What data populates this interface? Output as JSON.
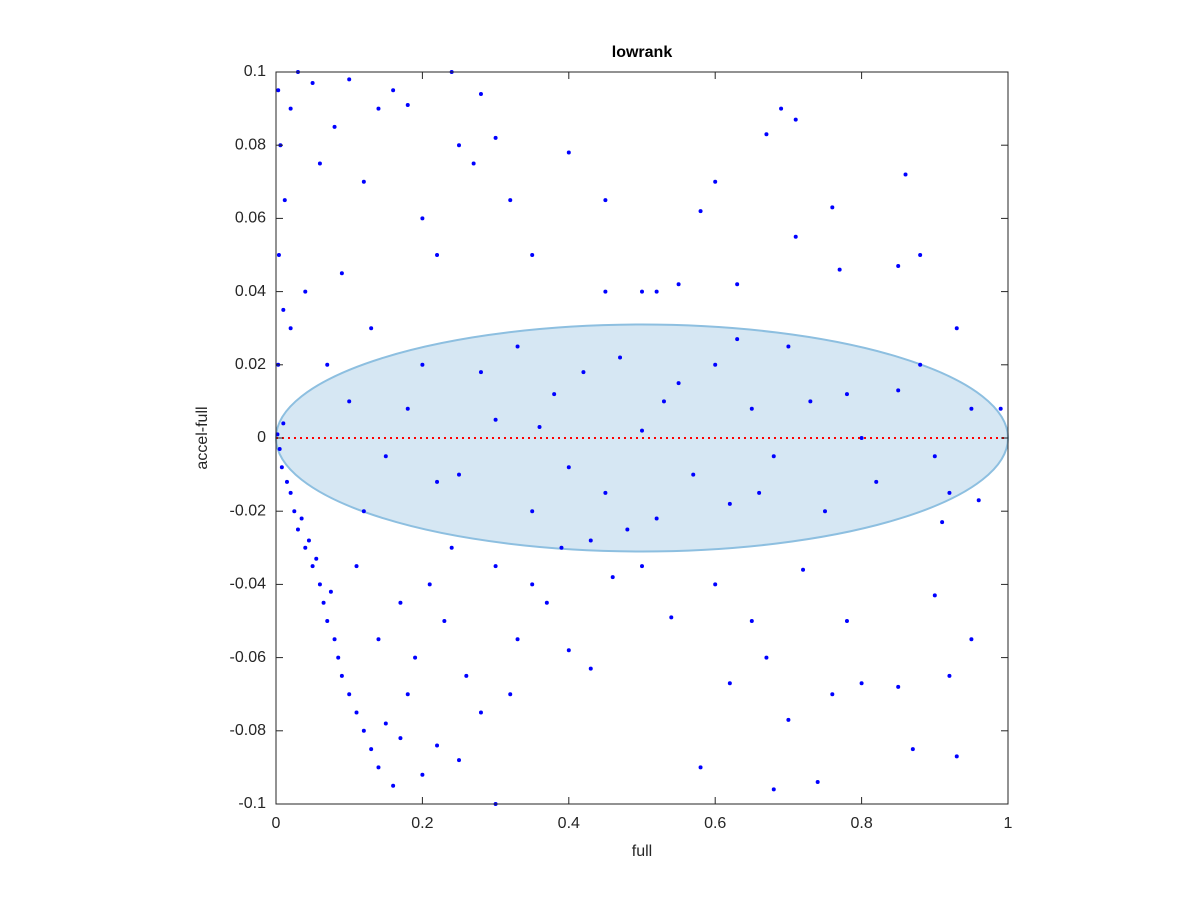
{
  "chart_data": {
    "type": "scatter",
    "title": "lowrank",
    "x_label": "full",
    "y_label": "accel-full",
    "color": "#0000ff",
    "x": [
      0.002,
      0.005,
      0.01,
      0.008,
      0.015,
      0.02,
      0.003,
      0.004,
      0.006,
      0.003,
      0.012,
      0.01,
      0.02,
      0.025,
      0.03,
      0.035,
      0.04,
      0.045,
      0.05,
      0.055,
      0.06,
      0.065,
      0.07,
      0.075,
      0.08,
      0.085,
      0.09,
      0.1,
      0.11,
      0.12,
      0.13,
      0.14,
      0.15,
      0.16,
      0.17,
      0.18,
      0.2,
      0.22,
      0.25,
      0.3,
      0.02,
      0.03,
      0.05,
      0.06,
      0.08,
      0.1,
      0.12,
      0.14,
      0.16,
      0.18,
      0.2,
      0.22,
      0.25,
      0.27,
      0.3,
      0.32,
      0.4,
      0.45,
      0.58,
      0.6,
      0.67,
      0.69,
      0.71,
      0.76,
      0.86,
      0.88,
      0.85,
      0.77,
      0.71,
      0.45,
      0.5,
      0.52,
      0.55,
      0.63,
      0.93,
      0.35,
      0.24,
      0.28,
      0.04,
      0.07,
      0.09,
      0.13,
      0.1,
      0.15,
      0.2,
      0.25,
      0.3,
      0.33,
      0.35,
      0.38,
      0.4,
      0.42,
      0.45,
      0.47,
      0.5,
      0.52,
      0.55,
      0.57,
      0.6,
      0.62,
      0.65,
      0.68,
      0.7,
      0.73,
      0.75,
      0.78,
      0.8,
      0.82,
      0.85,
      0.88,
      0.9,
      0.92,
      0.95,
      0.99,
      0.43,
      0.48,
      0.63,
      0.28,
      0.22,
      0.18,
      0.12,
      0.36,
      0.53,
      0.66,
      0.3,
      0.33,
      0.37,
      0.4,
      0.43,
      0.46,
      0.5,
      0.54,
      0.58,
      0.6,
      0.62,
      0.65,
      0.67,
      0.7,
      0.72,
      0.74,
      0.76,
      0.78,
      0.8,
      0.85,
      0.87,
      0.9,
      0.92,
      0.93,
      0.95,
      0.96,
      0.91,
      0.68,
      0.26,
      0.23,
      0.21,
      0.19,
      0.17,
      0.14,
      0.11,
      0.24,
      0.28,
      0.32,
      0.35,
      0.39
    ],
    "values": [
      0.001,
      -0.003,
      0.004,
      -0.008,
      -0.012,
      -0.015,
      0.02,
      0.05,
      0.08,
      0.095,
      0.065,
      0.035,
      0.03,
      -0.02,
      -0.025,
      -0.022,
      -0.03,
      -0.028,
      -0.035,
      -0.033,
      -0.04,
      -0.045,
      -0.05,
      -0.042,
      -0.055,
      -0.06,
      -0.065,
      -0.07,
      -0.075,
      -0.08,
      -0.085,
      -0.09,
      -0.078,
      -0.095,
      -0.082,
      -0.07,
      -0.092,
      -0.084,
      -0.088,
      -0.1,
      0.09,
      0.1,
      0.097,
      0.075,
      0.085,
      0.098,
      0.07,
      0.09,
      0.095,
      0.091,
      0.06,
      0.05,
      0.08,
      0.075,
      0.082,
      0.065,
      0.078,
      0.065,
      0.062,
      0.07,
      0.083,
      0.09,
      0.087,
      0.063,
      0.072,
      0.05,
      0.047,
      0.046,
      0.055,
      0.04,
      0.04,
      0.04,
      0.042,
      0.042,
      0.03,
      0.05,
      0.1,
      0.094,
      0.04,
      0.02,
      0.045,
      0.03,
      0.01,
      -0.005,
      0.02,
      -0.01,
      0.005,
      0.025,
      -0.02,
      0.012,
      -0.008,
      0.018,
      -0.015,
      0.022,
      0.002,
      -0.022,
      0.015,
      -0.01,
      0.02,
      -0.018,
      0.008,
      -0.005,
      0.025,
      0.01,
      -0.02,
      0.012,
      0,
      -0.012,
      0.013,
      0.02,
      -0.005,
      -0.015,
      0.008,
      0.008,
      -0.028,
      -0.025,
      0.027,
      0.018,
      -0.012,
      0.008,
      -0.02,
      0.003,
      0.01,
      -0.015,
      -0.035,
      -0.055,
      -0.045,
      -0.058,
      -0.063,
      -0.038,
      -0.035,
      -0.049,
      -0.09,
      -0.04,
      -0.067,
      -0.05,
      -0.06,
      -0.077,
      -0.036,
      -0.094,
      -0.07,
      -0.05,
      -0.067,
      -0.068,
      -0.085,
      -0.043,
      -0.065,
      -0.087,
      -0.055,
      -0.017,
      -0.023,
      -0.096,
      -0.065,
      -0.05,
      -0.04,
      -0.06,
      -0.045,
      -0.055,
      -0.035,
      -0.03,
      -0.075,
      -0.07,
      -0.04,
      -0.03
    ],
    "ellipse": {
      "center": [
        0.5,
        0
      ],
      "radii": [
        0.5,
        0.031
      ],
      "color": "#d6e7f3",
      "edge_color": "#8dbfe0"
    },
    "reference_line": {
      "y": 0,
      "x": [
        0,
        1
      ],
      "color": "#ff0000"
    },
    "xlim": [
      0,
      1
    ],
    "ylim": [
      -0.1,
      0.1
    ],
    "xticks": [
      0,
      0.2,
      0.4,
      0.6,
      0.8,
      1
    ],
    "yticks": [
      -0.1,
      -0.08,
      -0.06,
      -0.04,
      -0.02,
      0,
      0.02,
      0.04,
      0.06,
      0.08,
      0.1
    ]
  }
}
